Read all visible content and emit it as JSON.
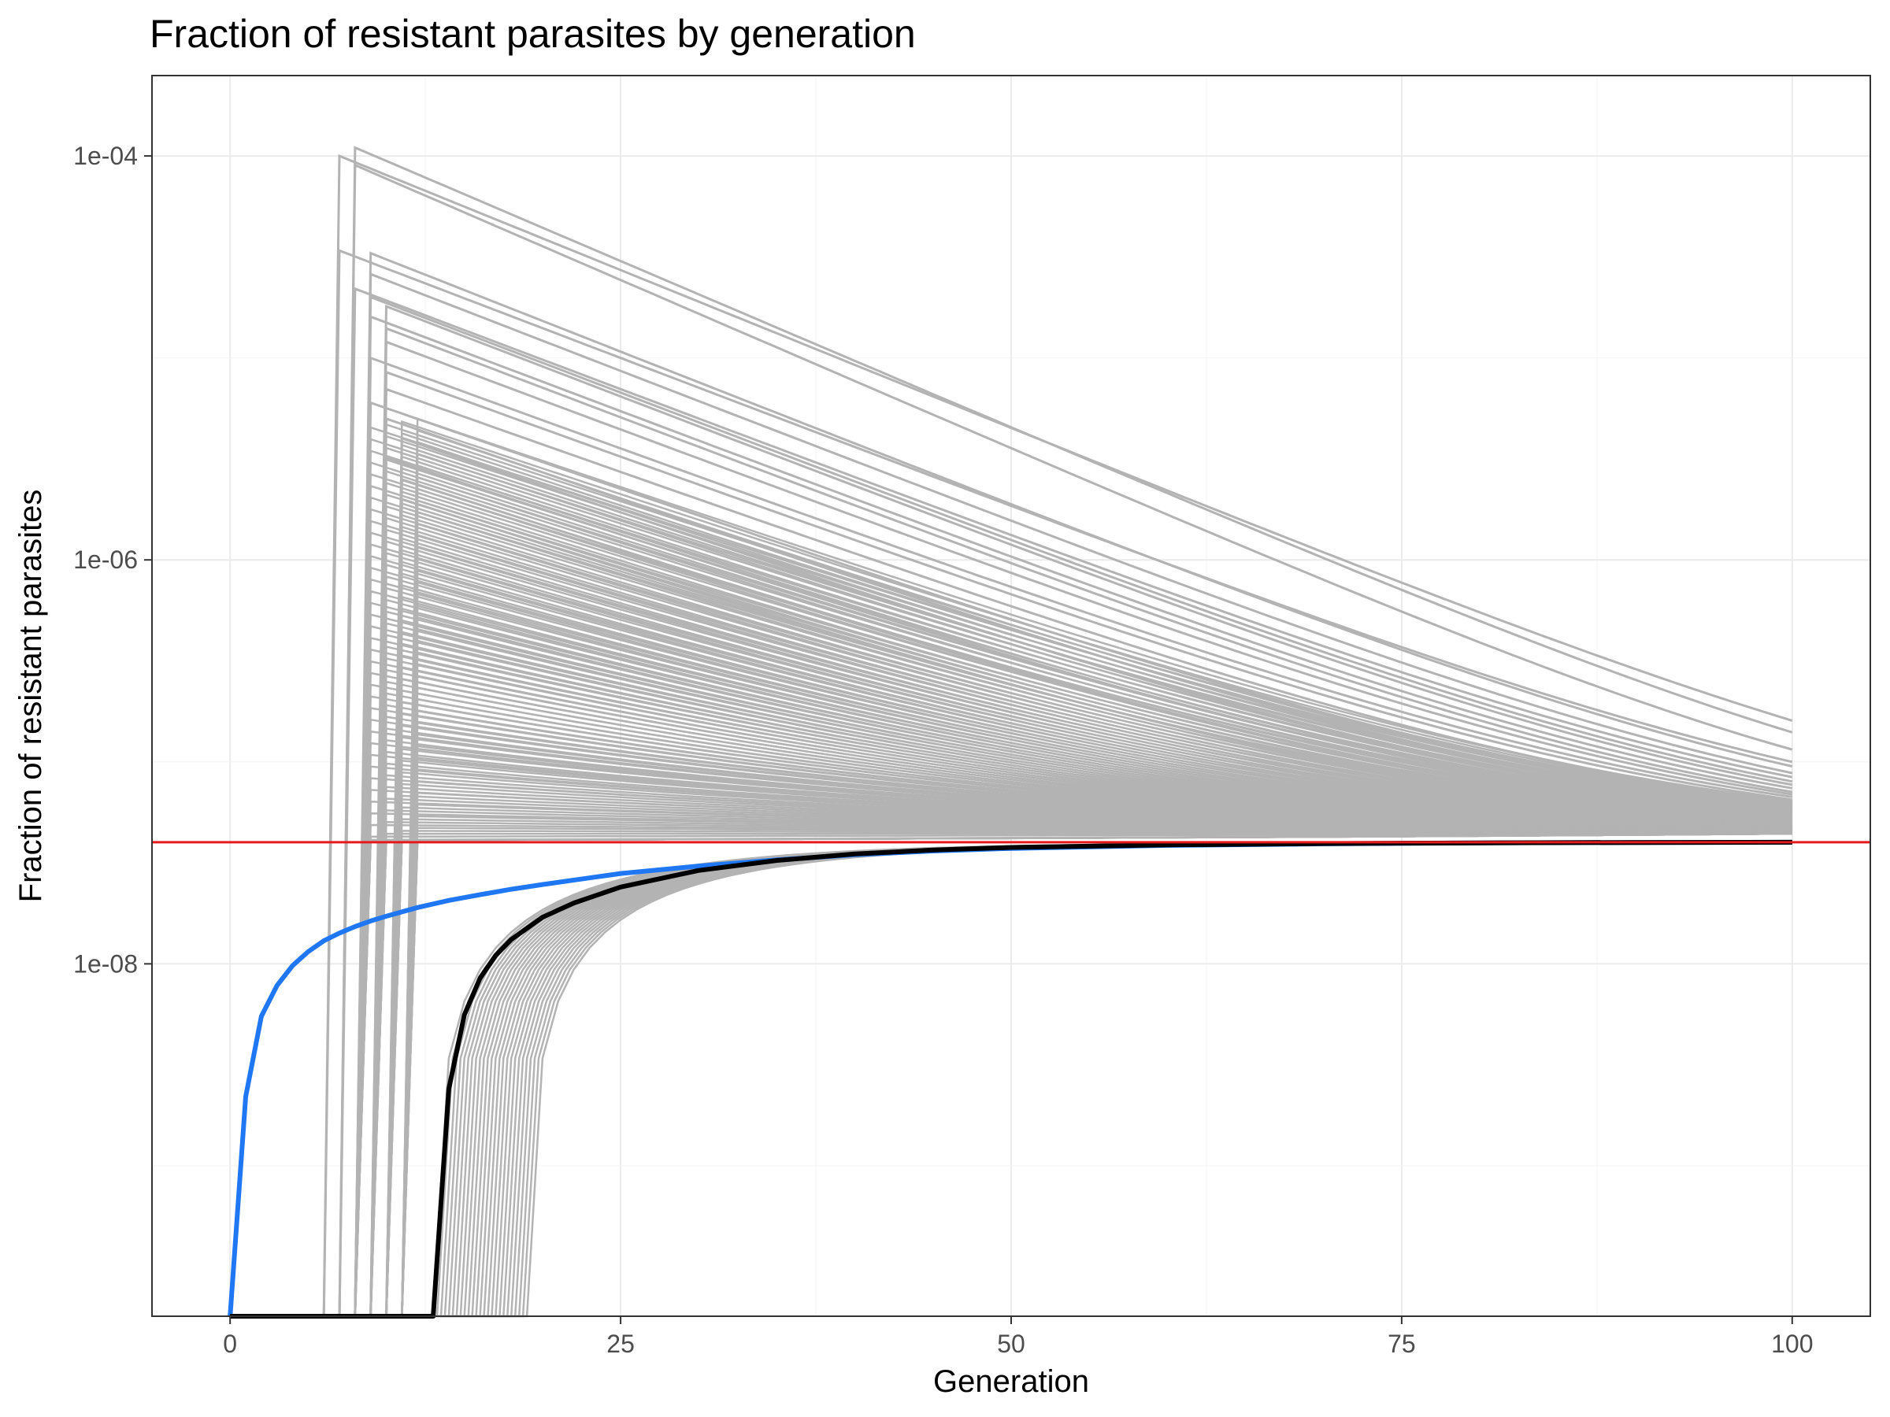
{
  "chart_data": {
    "type": "line",
    "title": "Fraction of resistant parasites by generation",
    "xlabel": "Generation",
    "ylabel": "Fraction of resistant parasites",
    "x_ticks": [
      0,
      25,
      50,
      75,
      100
    ],
    "y_ticks": [
      {
        "value": 0.0001,
        "label": "1e-04"
      },
      {
        "value": 1e-06,
        "label": "1e-06"
      },
      {
        "value": 1e-08,
        "label": "1e-08"
      }
    ],
    "xlim": [
      -5,
      105
    ],
    "ylim": [
      1.8e-10,
      0.00025
    ],
    "yscale": "log",
    "grid": true,
    "legend": "none",
    "threshold": {
      "value": 4e-08,
      "color": "#e41a1c"
    },
    "series": [
      {
        "color": "#1f77f4",
        "x": [
          0,
          1,
          2,
          3,
          4,
          5,
          6,
          7,
          8,
          9,
          10,
          12,
          14,
          16,
          18,
          20,
          25,
          30,
          35,
          40,
          45,
          50,
          60,
          70,
          80,
          90,
          100
        ],
        "y": [
          1.8e-10,
          2.2e-09,
          5.5e-09,
          7.8e-09,
          9.8e-09,
          1.15e-08,
          1.3e-08,
          1.42e-08,
          1.53e-08,
          1.63e-08,
          1.72e-08,
          1.9e-08,
          2.06e-08,
          2.2e-08,
          2.34e-08,
          2.47e-08,
          2.8e-08,
          3.05e-08,
          3.27e-08,
          3.47e-08,
          3.62e-08,
          3.73e-08,
          3.86e-08,
          3.93e-08,
          3.97e-08,
          3.99e-08,
          4e-08
        ]
      },
      {
        "color": "#000000",
        "x": [
          0,
          13,
          14,
          15,
          16,
          17,
          18,
          20,
          22,
          25,
          30,
          35,
          40,
          45,
          50,
          60,
          70,
          80,
          90,
          100
        ],
        "y": [
          1.8e-10,
          1.8e-10,
          2.4e-09,
          5.6e-09,
          8.5e-09,
          1.1e-08,
          1.32e-08,
          1.7e-08,
          2e-08,
          2.4e-08,
          2.9e-08,
          3.25e-08,
          3.5e-08,
          3.66e-08,
          3.77e-08,
          3.88e-08,
          3.94e-08,
          3.97e-08,
          3.99e-08,
          4e-08
        ]
      }
    ],
    "simulations": {
      "color": "#b3b3b3",
      "lines": [
        {
          "start": 7,
          "peak": 0.0001,
          "end": 1.6e-07
        },
        {
          "start": 8,
          "peak": 0.00011,
          "end": 1.4e-07
        },
        {
          "start": 8,
          "peak": 9e-05,
          "end": 1.15e-07
        },
        {
          "start": 7,
          "peak": 3.4e-05,
          "end": 1e-07
        },
        {
          "start": 9,
          "peak": 3.3e-05,
          "end": 9.5e-08
        },
        {
          "start": 9,
          "peak": 2.6e-05,
          "end": 8.8e-08
        },
        {
          "start": 8,
          "peak": 2.2e-05,
          "end": 8.4e-08
        },
        {
          "start": 9,
          "peak": 2e-05,
          "end": 8e-08
        },
        {
          "start": 10,
          "peak": 1.8e-05,
          "end": 7.7e-08
        },
        {
          "start": 9,
          "peak": 1.6e-05,
          "end": 7.4e-08
        },
        {
          "start": 10,
          "peak": 1.4e-05,
          "end": 7.1e-08
        },
        {
          "start": 10,
          "peak": 1.2e-05,
          "end": 6.9e-08
        },
        {
          "start": 9,
          "peak": 1e-05,
          "end": 6.7e-08
        },
        {
          "start": 10,
          "peak": 8.5e-06,
          "end": 6.5e-08
        },
        {
          "start": 10,
          "peak": 7e-06,
          "end": 6.3e-08
        },
        {
          "start": 9,
          "peak": 6e-06,
          "end": 6.1e-08
        },
        {
          "start": 10,
          "peak": 5e-06,
          "end": 5.9e-08
        },
        {
          "start": 11,
          "peak": 4e-06,
          "end": 5.7e-08
        },
        {
          "start": 10,
          "peak": 3.2e-06,
          "end": 5.5e-08
        },
        {
          "start": 11,
          "peak": 2.5e-06,
          "end": 5.3e-08
        },
        {
          "start": 11,
          "peak": 2e-06,
          "end": 5.1e-08
        }
      ]
    }
  }
}
